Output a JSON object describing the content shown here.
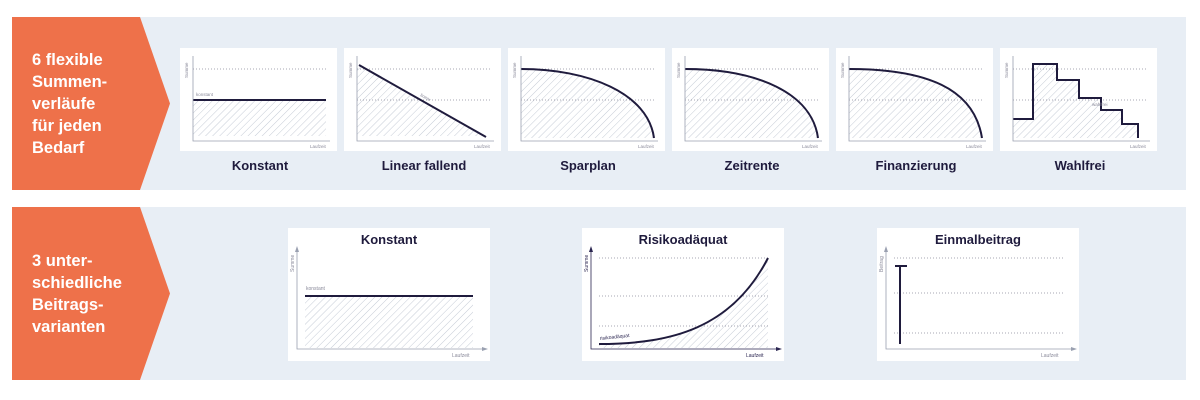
{
  "section1": {
    "label": "6 flexible\nSummen-\nverläufe\nfür jeden\nBedarf",
    "cards": [
      {
        "name": "Konstant",
        "line_label": "konstant"
      },
      {
        "name": "Linear fallend",
        "line_label": "linear"
      },
      {
        "name": "Sparplan"
      },
      {
        "name": "Zeitrente"
      },
      {
        "name": "Finanzierung"
      },
      {
        "name": "Wahlfrei",
        "line_label": "wahlfrei"
      }
    ],
    "y_axis_label": "Summe",
    "x_axis_label": "Laufzeit"
  },
  "section2": {
    "label": "3 unter-\nschiedliche\nBeitrags-\nvarianten",
    "cards": [
      {
        "name": "Konstant",
        "y_axis_label": "Summe",
        "x_axis_label": "Laufzeit",
        "line_label": "konstant"
      },
      {
        "name": "Risikoadäquat",
        "y_axis_label": "Summe",
        "x_axis_label": "Laufzeit",
        "line_label": "risikoadäquat"
      },
      {
        "name": "Einmalbeitrag",
        "y_axis_label": "Beitrag",
        "x_axis_label": "Laufzeit"
      }
    ]
  },
  "colors": {
    "accent": "#ee714a",
    "band": "#e8eef5",
    "line": "#1f1b3d",
    "hatch": "#c9ced8"
  }
}
